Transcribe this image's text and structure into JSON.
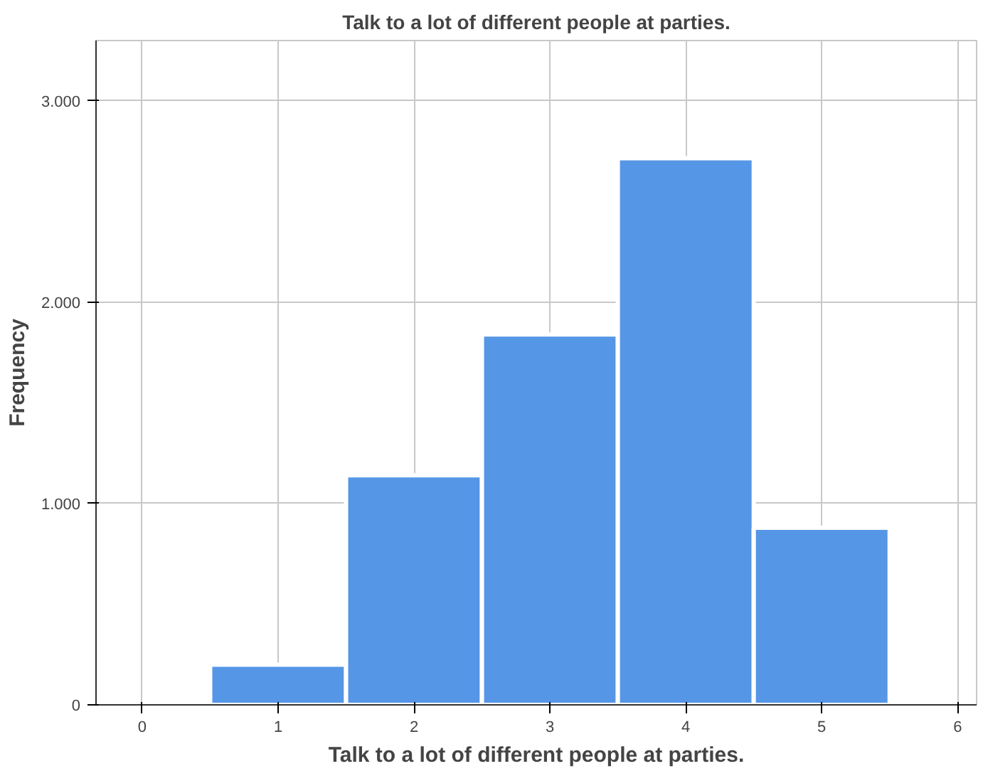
{
  "chart_data": {
    "type": "histogram",
    "title": "Talk to a lot of different people at parties.",
    "xlabel": "Talk to a lot of different people at parties.",
    "ylabel": "Frequency",
    "bins": [
      0.5,
      1.5,
      2.5,
      3.5,
      4.5,
      5.5
    ],
    "values": [
      200,
      1140,
      1840,
      2715,
      880
    ],
    "color": "#5596e6",
    "xlim": [
      -0.34,
      6.14
    ],
    "xticks": [
      0,
      1,
      2,
      3,
      4,
      5,
      6
    ],
    "ylim": [
      0,
      3300
    ],
    "yticks": [
      {
        "value": 0,
        "label": "0"
      },
      {
        "value": 1000,
        "label": "1.000"
      },
      {
        "value": 2000,
        "label": "2.000"
      },
      {
        "value": 3000,
        "label": "3.000"
      }
    ],
    "grid": true
  }
}
